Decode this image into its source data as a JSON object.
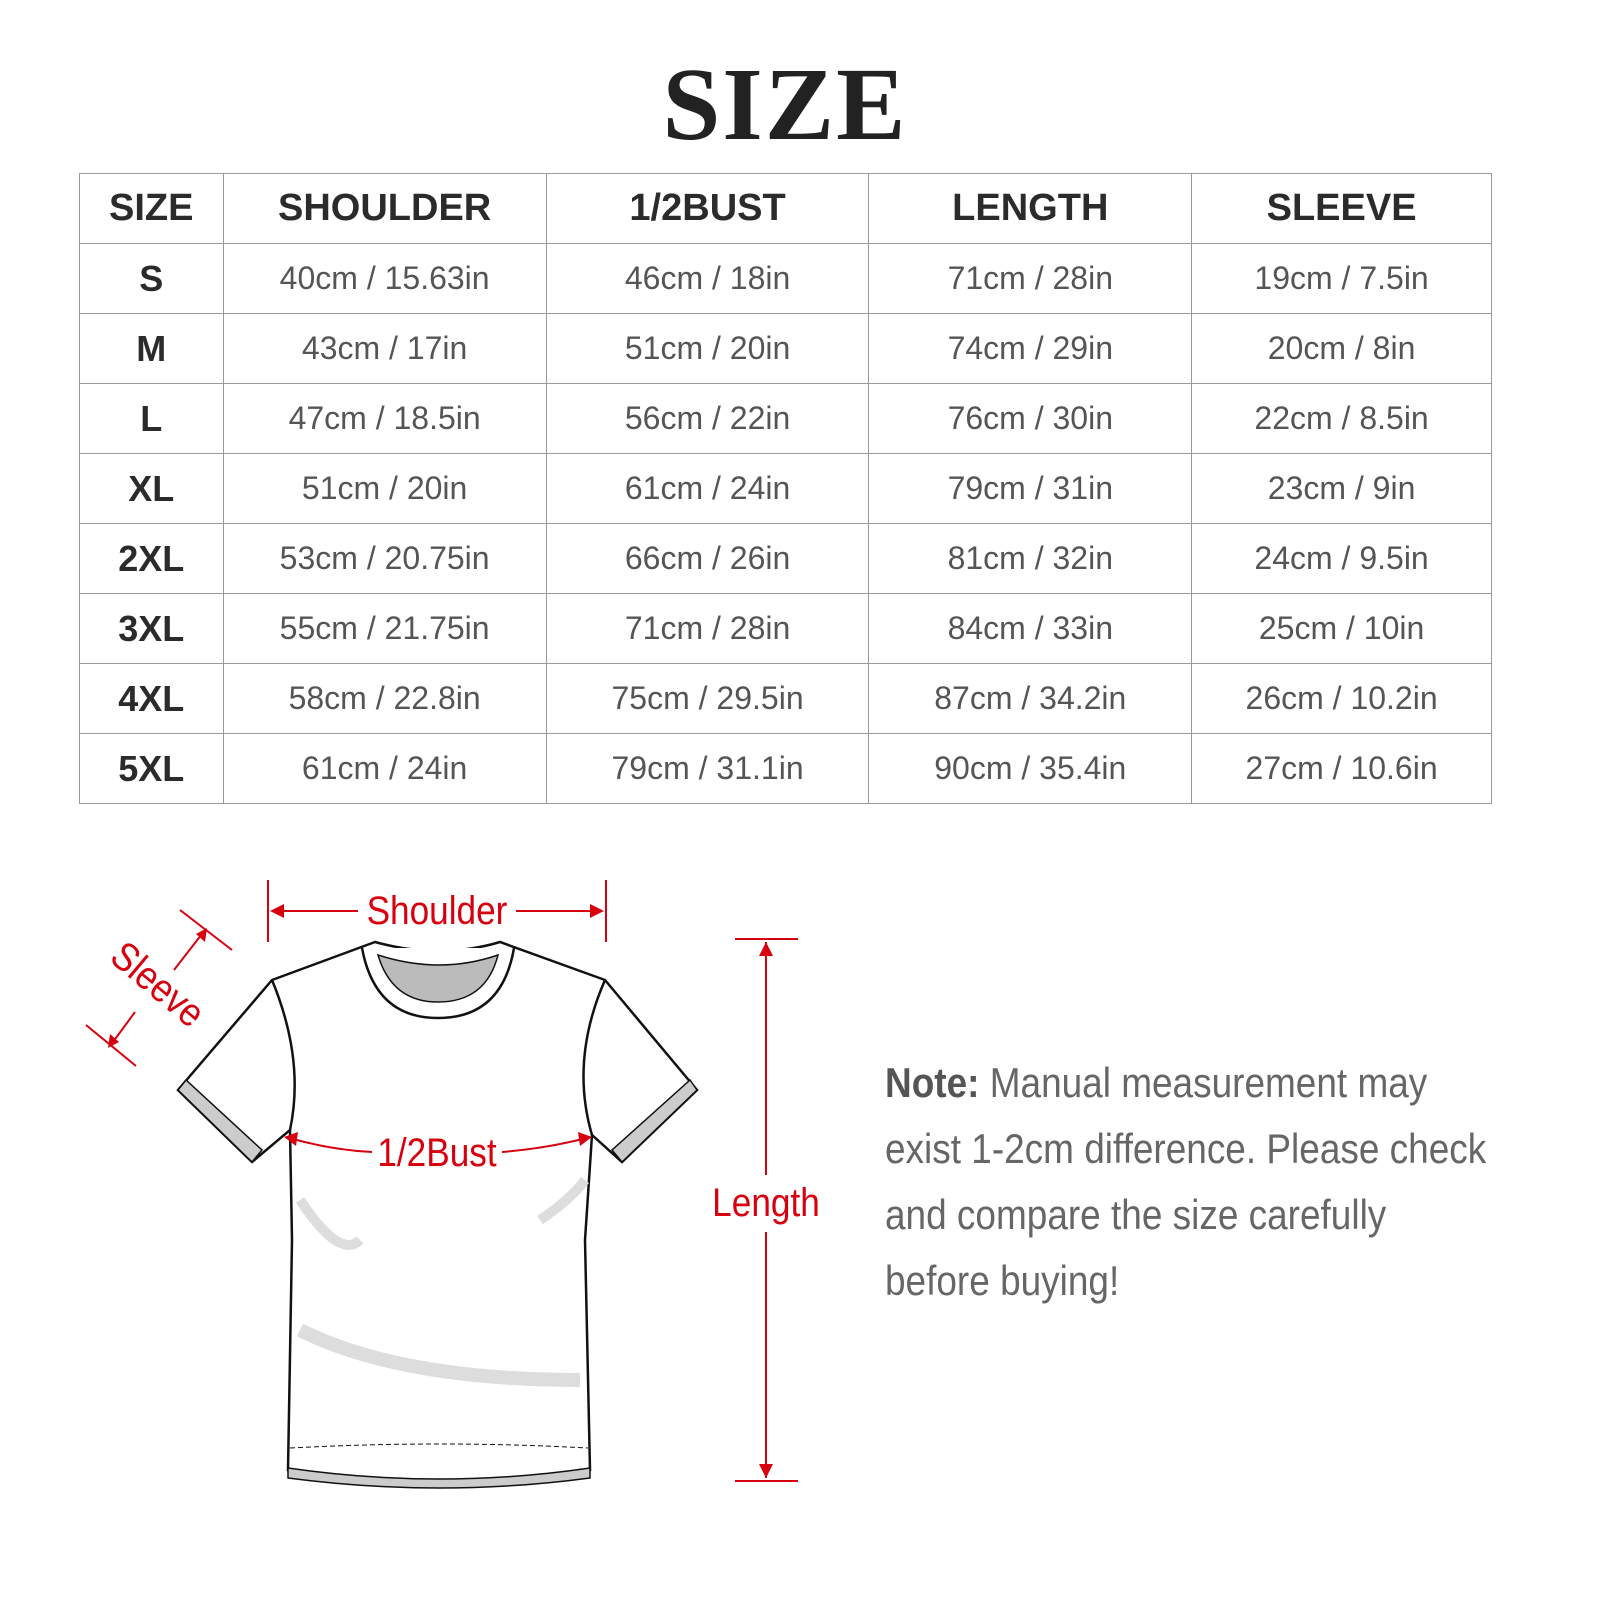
{
  "title": "SIZE",
  "table": {
    "headers": [
      "SIZE",
      "SHOULDER",
      "1/2BUST",
      "LENGTH",
      "SLEEVE"
    ],
    "rows": [
      [
        "S",
        "40cm / 15.63in",
        "46cm / 18in",
        "71cm / 28in",
        "19cm / 7.5in"
      ],
      [
        "M",
        "43cm / 17in",
        "51cm / 20in",
        "74cm / 29in",
        "20cm / 8in"
      ],
      [
        "L",
        "47cm / 18.5in",
        "56cm / 22in",
        "76cm / 30in",
        "22cm / 8.5in"
      ],
      [
        "XL",
        "51cm / 20in",
        "61cm / 24in",
        "79cm / 31in",
        "23cm / 9in"
      ],
      [
        "2XL",
        "53cm / 20.75in",
        "66cm / 26in",
        "81cm / 32in",
        "24cm / 9.5in"
      ],
      [
        "3XL",
        "55cm / 21.75in",
        "71cm / 28in",
        "84cm / 33in",
        "25cm / 10in"
      ],
      [
        "4XL",
        "58cm / 22.8in",
        "75cm / 29.5in",
        "87cm / 34.2in",
        "26cm / 10.2in"
      ],
      [
        "5XL",
        "61cm / 24in",
        "79cm / 31.1in",
        "90cm / 35.4in",
        "27cm / 10.6in"
      ]
    ]
  },
  "diagram": {
    "shoulder_label": "Shoulder",
    "sleeve_label": "Sleeve",
    "bust_label": "1/2Bust",
    "length_label": "Length",
    "accent_color": "#d7000f"
  },
  "note": {
    "label": "Note:",
    "text": "Manual measurement may exist 1-2cm difference. Please check and compare the size carefully before buying!"
  }
}
